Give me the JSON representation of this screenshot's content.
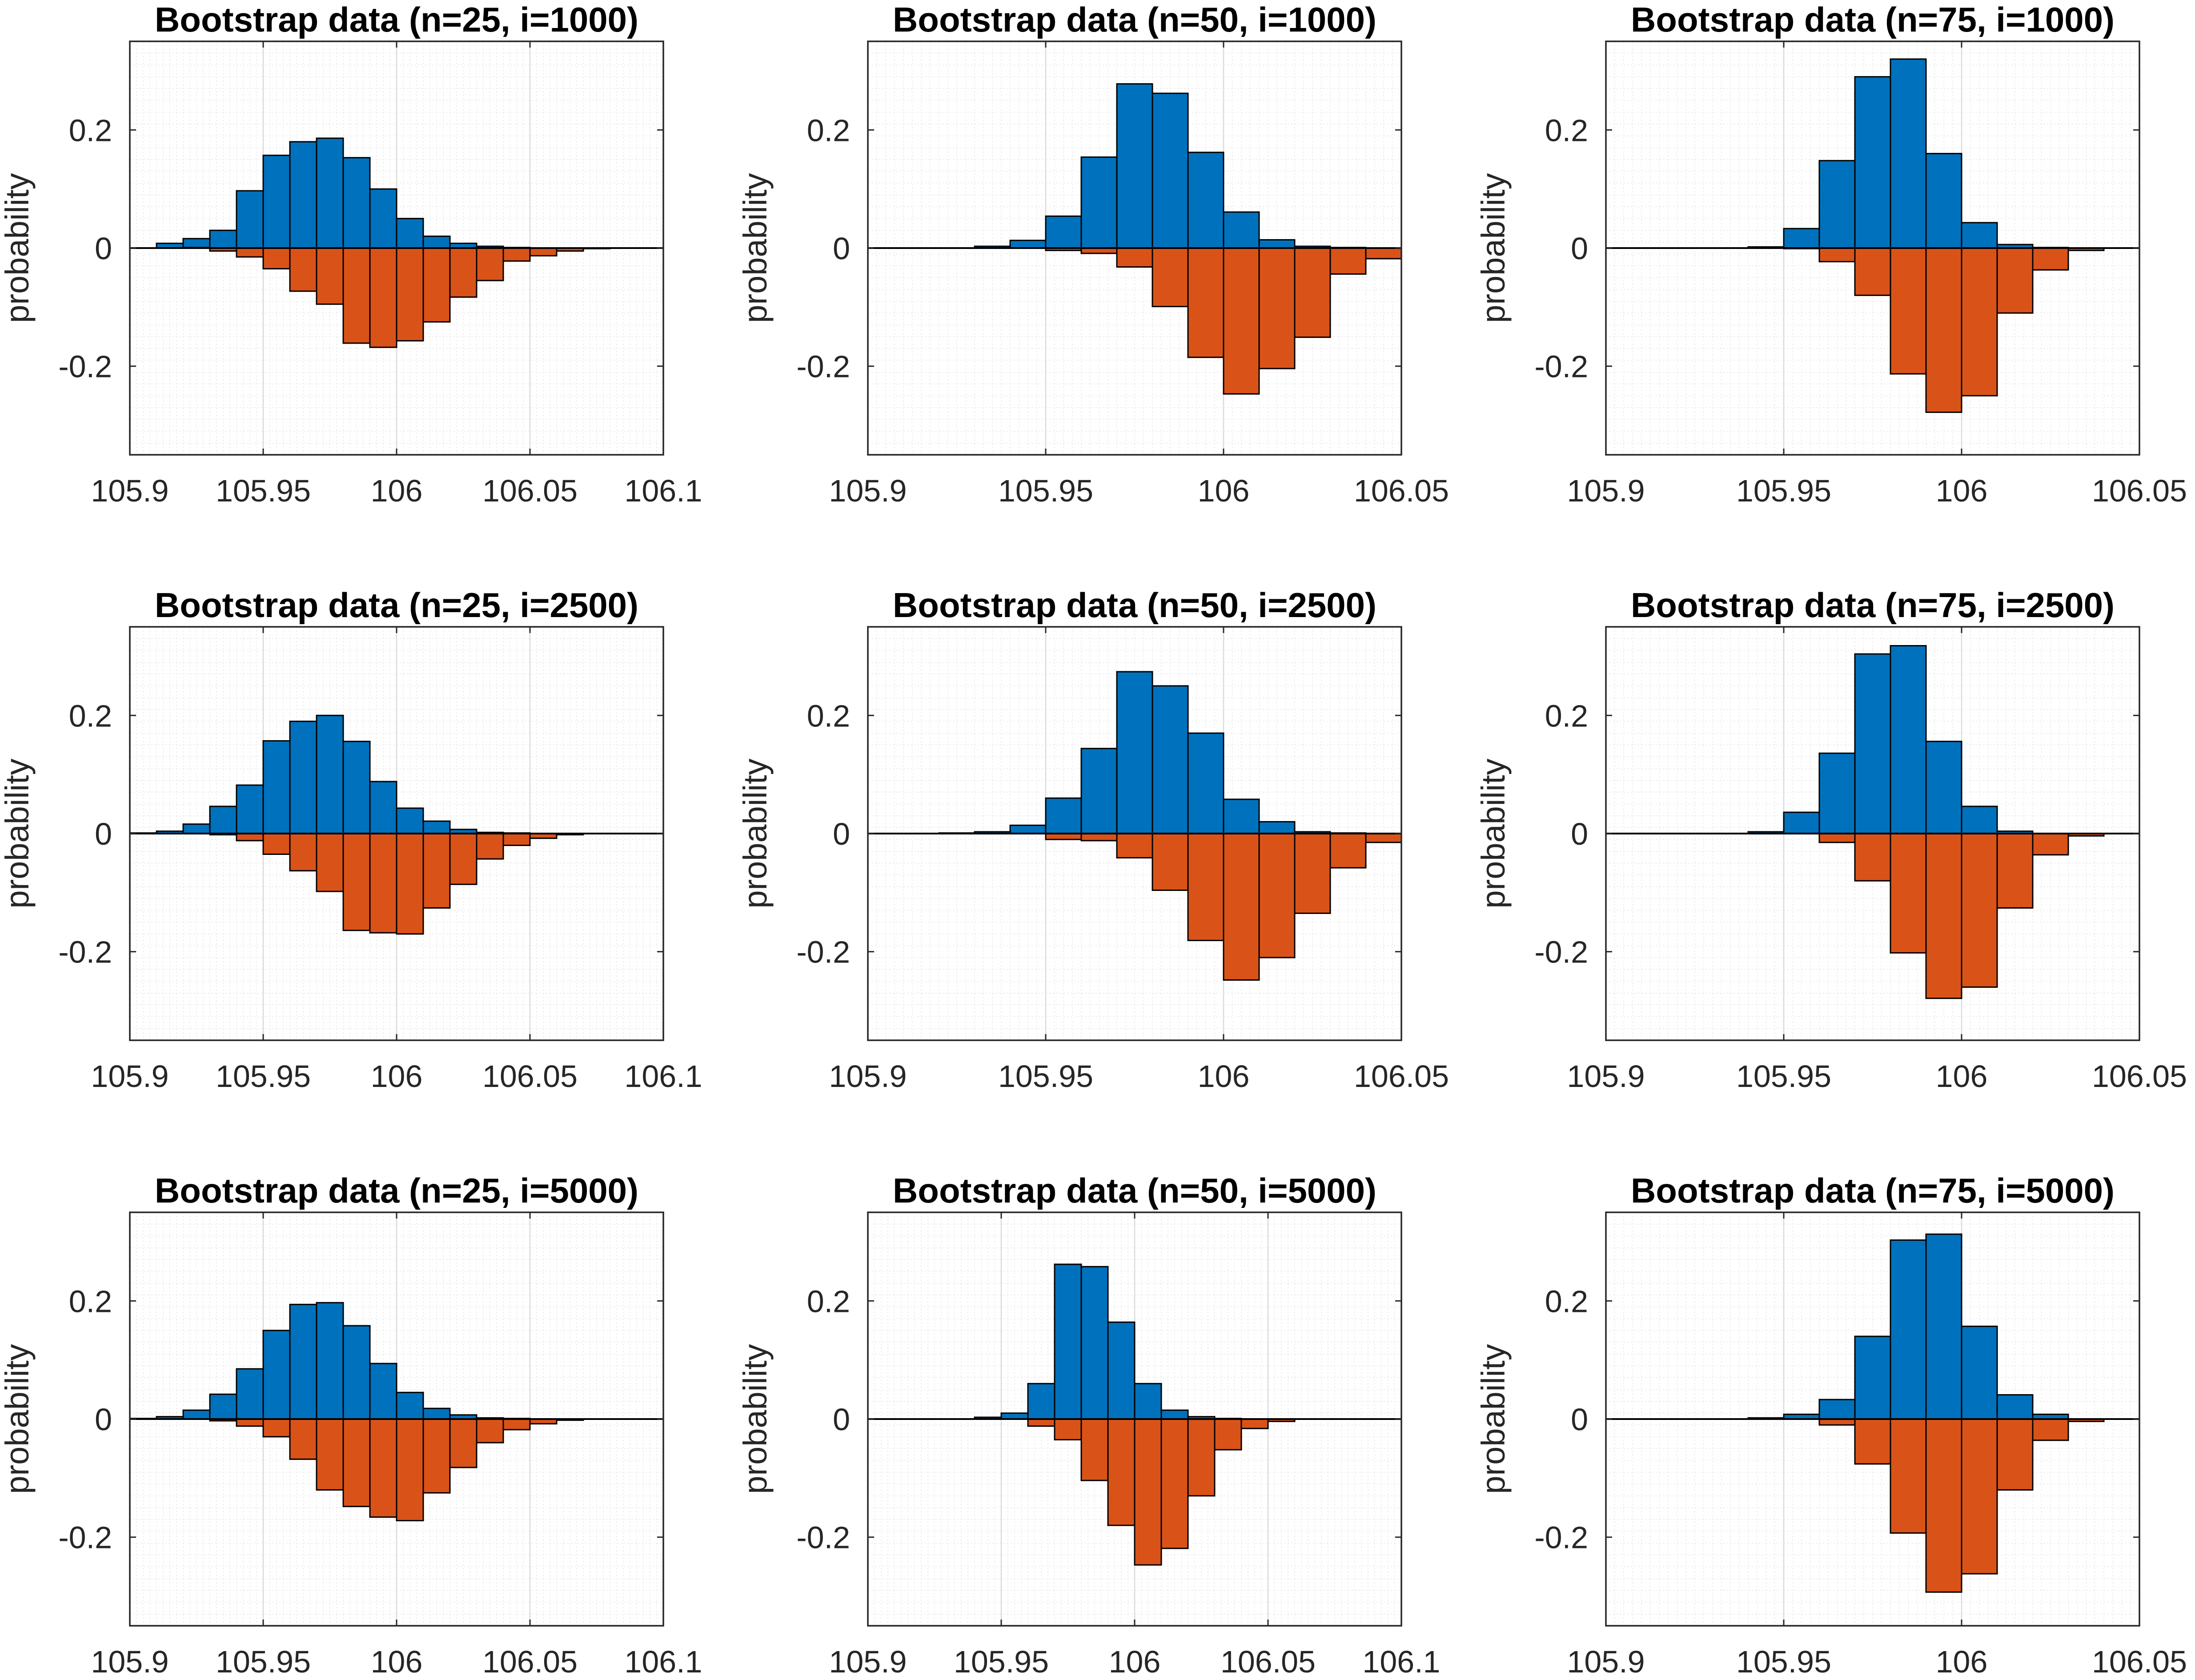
{
  "chart_data": [
    {
      "type": "bar",
      "title": "Bootstrap data (n=25, i=1000)",
      "xlabel": "",
      "ylabel": "probability",
      "xlim": [
        105.9,
        106.1
      ],
      "ylim": [
        -0.35,
        0.35
      ],
      "xticks": [
        "105.9",
        "105.95",
        "106",
        "106.05",
        "106.1"
      ],
      "yticks": [
        "0.2",
        "0",
        "-0.2"
      ],
      "bin_edges": [
        105.9,
        105.91,
        105.92,
        105.93,
        105.94,
        105.95,
        105.96,
        105.97,
        105.98,
        105.99,
        106.0,
        106.01,
        106.02,
        106.03,
        106.04,
        106.05,
        106.06,
        106.07,
        106.08,
        106.09,
        106.1
      ],
      "series": [
        {
          "color": "#0072BD",
          "values": [
            0.0,
            0.008,
            0.016,
            0.03,
            0.097,
            0.157,
            0.18,
            0.186,
            0.153,
            0.1,
            0.05,
            0.02,
            0.008,
            0.003,
            0.001,
            0.0,
            0.0,
            0.0,
            0.0,
            0.0
          ]
        },
        {
          "color": "#D95319",
          "values": [
            0.0,
            0.0,
            0.001,
            -0.005,
            -0.015,
            -0.035,
            -0.073,
            -0.095,
            -0.161,
            -0.168,
            -0.157,
            -0.125,
            -0.083,
            -0.055,
            -0.022,
            -0.013,
            -0.005,
            -0.001,
            0.0,
            0.0
          ]
        }
      ]
    },
    {
      "type": "bar",
      "title": "Bootstrap data (n=50, i=1000)",
      "xlabel": "",
      "ylabel": "probability",
      "xlim": [
        105.9,
        106.05
      ],
      "ylim": [
        -0.35,
        0.35
      ],
      "xticks": [
        "105.9",
        "105.95",
        "106",
        "106.05"
      ],
      "yticks": [
        "0.2",
        "0",
        "-0.2"
      ],
      "bin_edges": [
        105.9,
        105.91,
        105.92,
        105.93,
        105.94,
        105.95,
        105.96,
        105.97,
        105.98,
        105.99,
        106.0,
        106.01,
        106.02,
        106.03,
        106.04,
        106.05
      ],
      "series": [
        {
          "color": "#0072BD",
          "values": [
            0.0,
            0.0,
            0.0,
            0.003,
            0.013,
            0.054,
            0.154,
            0.278,
            0.262,
            0.162,
            0.061,
            0.014,
            0.003,
            0.001,
            0.0
          ]
        },
        {
          "color": "#D95319",
          "values": [
            0.0,
            0.0,
            0.0,
            0.0,
            0.0,
            -0.004,
            -0.009,
            -0.032,
            -0.099,
            -0.185,
            -0.247,
            -0.204,
            -0.151,
            -0.044,
            -0.018
          ]
        }
      ]
    },
    {
      "type": "bar",
      "title": "Bootstrap data (n=75, i=1000)",
      "xlabel": "",
      "ylabel": "probability",
      "xlim": [
        105.9,
        106.05
      ],
      "ylim": [
        -0.35,
        0.35
      ],
      "xticks": [
        "105.9",
        "105.95",
        "106",
        "106.05"
      ],
      "yticks": [
        "0.2",
        "0",
        "-0.2"
      ],
      "bin_edges": [
        105.9,
        105.91,
        105.92,
        105.93,
        105.94,
        105.95,
        105.96,
        105.97,
        105.98,
        105.99,
        106.0,
        106.01,
        106.02,
        106.03,
        106.04,
        106.05
      ],
      "series": [
        {
          "color": "#0072BD",
          "values": [
            0.0,
            0.0,
            0.0,
            0.0,
            0.002,
            0.033,
            0.148,
            0.29,
            0.32,
            0.16,
            0.043,
            0.006,
            0.001,
            0.0,
            0.0
          ]
        },
        {
          "color": "#D95319",
          "values": [
            0.0,
            0.0,
            0.0,
            0.0,
            0.0,
            -0.001,
            -0.023,
            -0.08,
            -0.213,
            -0.278,
            -0.25,
            -0.11,
            -0.037,
            -0.004,
            0.0
          ]
        }
      ]
    },
    {
      "type": "bar",
      "title": "Bootstrap data (n=25, i=2500)",
      "xlabel": "",
      "ylabel": "probability",
      "xlim": [
        105.9,
        106.1
      ],
      "ylim": [
        -0.35,
        0.35
      ],
      "xticks": [
        "105.9",
        "105.95",
        "106",
        "106.05",
        "106.1"
      ],
      "yticks": [
        "0.2",
        "0",
        "-0.2"
      ],
      "bin_edges": [
        105.9,
        105.91,
        105.92,
        105.93,
        105.94,
        105.95,
        105.96,
        105.97,
        105.98,
        105.99,
        106.0,
        106.01,
        106.02,
        106.03,
        106.04,
        106.05,
        106.06,
        106.07,
        106.08,
        106.09,
        106.1
      ],
      "series": [
        {
          "color": "#0072BD",
          "values": [
            0.001,
            0.004,
            0.016,
            0.046,
            0.082,
            0.157,
            0.19,
            0.2,
            0.156,
            0.088,
            0.043,
            0.021,
            0.007,
            0.002,
            0.001,
            0.0,
            0.0,
            0.0,
            0.0,
            0.0
          ]
        },
        {
          "color": "#D95319",
          "values": [
            0.0,
            0.0,
            0.0,
            -0.002,
            -0.012,
            -0.035,
            -0.063,
            -0.098,
            -0.164,
            -0.168,
            -0.17,
            -0.126,
            -0.086,
            -0.043,
            -0.02,
            -0.008,
            -0.002,
            0.0,
            0.0,
            0.0
          ]
        }
      ]
    },
    {
      "type": "bar",
      "title": "Bootstrap data (n=50, i=2500)",
      "xlabel": "",
      "ylabel": "probability",
      "xlim": [
        105.9,
        106.05
      ],
      "ylim": [
        -0.35,
        0.35
      ],
      "xticks": [
        "105.9",
        "105.95",
        "106",
        "106.05"
      ],
      "yticks": [
        "0.2",
        "0",
        "-0.2"
      ],
      "bin_edges": [
        105.9,
        105.91,
        105.92,
        105.93,
        105.94,
        105.95,
        105.96,
        105.97,
        105.98,
        105.99,
        106.0,
        106.01,
        106.02,
        106.03,
        106.04,
        106.05
      ],
      "series": [
        {
          "color": "#0072BD",
          "values": [
            0.0,
            0.0,
            0.001,
            0.003,
            0.014,
            0.06,
            0.144,
            0.274,
            0.25,
            0.17,
            0.058,
            0.02,
            0.003,
            0.001,
            0.0
          ]
        },
        {
          "color": "#D95319",
          "values": [
            0.0,
            0.0,
            0.0,
            0.0,
            0.0,
            -0.01,
            -0.012,
            -0.041,
            -0.096,
            -0.181,
            -0.248,
            -0.21,
            -0.135,
            -0.058,
            -0.015
          ]
        }
      ]
    },
    {
      "type": "bar",
      "title": "Bootstrap data (n=75, i=2500)",
      "xlabel": "",
      "ylabel": "probability",
      "xlim": [
        105.9,
        106.05
      ],
      "ylim": [
        -0.35,
        0.35
      ],
      "xticks": [
        "105.9",
        "105.95",
        "106",
        "106.05"
      ],
      "yticks": [
        "0.2",
        "0",
        "-0.2"
      ],
      "bin_edges": [
        105.9,
        105.91,
        105.92,
        105.93,
        105.94,
        105.95,
        105.96,
        105.97,
        105.98,
        105.99,
        106.0,
        106.01,
        106.02,
        106.03,
        106.04,
        106.05
      ],
      "series": [
        {
          "color": "#0072BD",
          "values": [
            0.0,
            0.0,
            0.0,
            0.0,
            0.003,
            0.036,
            0.136,
            0.304,
            0.318,
            0.156,
            0.046,
            0.004,
            0.0,
            0.0,
            0.0
          ]
        },
        {
          "color": "#D95319",
          "values": [
            0.0,
            0.0,
            0.0,
            0.0,
            0.0,
            0.0,
            -0.015,
            -0.08,
            -0.202,
            -0.279,
            -0.26,
            -0.126,
            -0.036,
            -0.004,
            0.0
          ]
        }
      ]
    },
    {
      "type": "bar",
      "title": "Bootstrap data (n=25, i=5000)",
      "xlabel": "",
      "ylabel": "probability",
      "xlim": [
        105.9,
        106.1
      ],
      "ylim": [
        -0.35,
        0.35
      ],
      "xticks": [
        "105.9",
        "105.95",
        "106",
        "106.05",
        "106.1"
      ],
      "yticks": [
        "0.2",
        "0",
        "-0.2"
      ],
      "bin_edges": [
        105.9,
        105.91,
        105.92,
        105.93,
        105.94,
        105.95,
        105.96,
        105.97,
        105.98,
        105.99,
        106.0,
        106.01,
        106.02,
        106.03,
        106.04,
        106.05,
        106.06,
        106.07,
        106.08,
        106.09,
        106.1
      ],
      "series": [
        {
          "color": "#0072BD",
          "values": [
            0.001,
            0.004,
            0.015,
            0.042,
            0.085,
            0.15,
            0.194,
            0.197,
            0.158,
            0.094,
            0.045,
            0.018,
            0.007,
            0.002,
            0.001,
            0.0,
            0.0,
            0.0,
            0.0,
            0.0
          ]
        },
        {
          "color": "#D95319",
          "values": [
            0.0,
            0.0,
            0.0,
            -0.003,
            -0.012,
            -0.03,
            -0.068,
            -0.12,
            -0.148,
            -0.166,
            -0.172,
            -0.125,
            -0.082,
            -0.04,
            -0.018,
            -0.008,
            -0.002,
            0.0,
            0.0,
            0.0
          ]
        }
      ]
    },
    {
      "type": "bar",
      "title": "Bootstrap data (n=50, i=5000)",
      "xlabel": "",
      "ylabel": "probability",
      "xlim": [
        105.9,
        106.1
      ],
      "ylim": [
        -0.35,
        0.35
      ],
      "xticks": [
        "105.9",
        "105.95",
        "106",
        "106.05",
        "106.1"
      ],
      "yticks": [
        "0.2",
        "0",
        "-0.2"
      ],
      "bin_edges": [
        105.9,
        105.91,
        105.92,
        105.93,
        105.94,
        105.95,
        105.96,
        105.97,
        105.98,
        105.99,
        106.0,
        106.01,
        106.02,
        106.03,
        106.04,
        106.05,
        106.06,
        106.07,
        106.08,
        106.09,
        106.1
      ],
      "series": [
        {
          "color": "#0072BD",
          "values": [
            0.0,
            0.0,
            0.0,
            0.0,
            0.003,
            0.01,
            0.06,
            0.262,
            0.258,
            0.164,
            0.06,
            0.015,
            0.004,
            0.001,
            0.0,
            0.0,
            0.0,
            0.0,
            0.0,
            0.0
          ]
        },
        {
          "color": "#D95319",
          "values": [
            0.0,
            0.0,
            0.0,
            0.0,
            0.0,
            0.0,
            -0.012,
            -0.035,
            -0.104,
            -0.18,
            -0.247,
            -0.219,
            -0.13,
            -0.052,
            -0.016,
            -0.004,
            0.0,
            0.0,
            0.0,
            0.0
          ]
        }
      ]
    },
    {
      "type": "bar",
      "title": "Bootstrap data (n=75, i=5000)",
      "xlabel": "",
      "ylabel": "probability",
      "xlim": [
        105.9,
        106.05
      ],
      "ylim": [
        -0.35,
        0.35
      ],
      "xticks": [
        "105.9",
        "105.95",
        "106",
        "106.05"
      ],
      "yticks": [
        "0.2",
        "0",
        "-0.2"
      ],
      "bin_edges": [
        105.9,
        105.91,
        105.92,
        105.93,
        105.94,
        105.95,
        105.96,
        105.97,
        105.98,
        105.99,
        106.0,
        106.01,
        106.02,
        106.03,
        106.04,
        106.05
      ],
      "series": [
        {
          "color": "#0072BD",
          "values": [
            0.0,
            0.0,
            0.0,
            0.0,
            0.002,
            0.008,
            0.033,
            0.14,
            0.303,
            0.313,
            0.157,
            0.041,
            0.008,
            0.0,
            0.0
          ]
        },
        {
          "color": "#D95319",
          "values": [
            0.0,
            0.0,
            0.0,
            0.0,
            0.0,
            0.0,
            -0.01,
            -0.076,
            -0.193,
            -0.293,
            -0.262,
            -0.12,
            -0.036,
            -0.004,
            0.0
          ]
        }
      ]
    }
  ]
}
